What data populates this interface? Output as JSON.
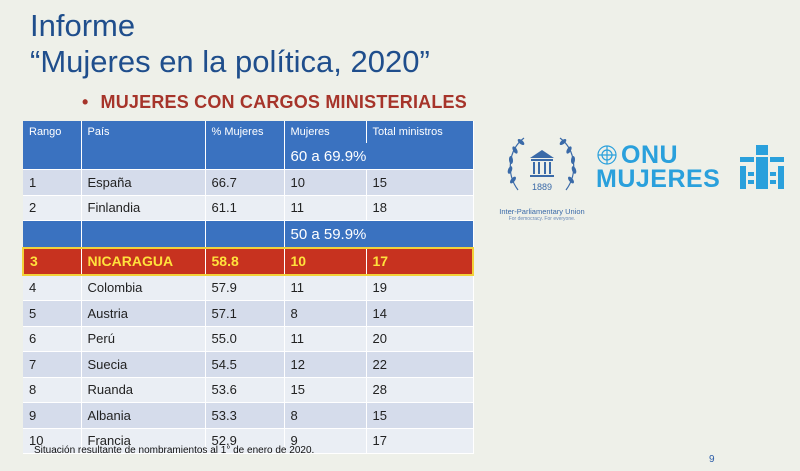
{
  "header": {
    "title_line1": "Informe",
    "title_line2": "“Mujeres en la política, 2020”",
    "subtitle_bullet": "•",
    "subtitle": "MUJERES CON CARGOS MINISTERIALES"
  },
  "table": {
    "headers": [
      "Rango",
      "País",
      "% Mujeres",
      "Mujeres",
      "Total ministros"
    ],
    "group1": "60 a 69.9%",
    "group2": "50 a 59.9%",
    "rows": [
      [
        "1",
        "España",
        "66.7",
        "10",
        "15"
      ],
      [
        "2",
        "Finlandia",
        "61.1",
        "11",
        "18"
      ],
      [
        "3",
        "NICARAGUA",
        "58.8",
        "10",
        "17"
      ],
      [
        "4",
        "Colombia",
        "57.9",
        "11",
        "19"
      ],
      [
        "5",
        "Austria",
        "57.1",
        "8",
        "14"
      ],
      [
        "6",
        "Perú",
        "55.0",
        "11",
        "20"
      ],
      [
        "7",
        "Suecia",
        "54.5",
        "12",
        "22"
      ],
      [
        "8",
        "Ruanda",
        "53.6",
        "15",
        "28"
      ],
      [
        "9",
        "Albania",
        "53.3",
        "8",
        "15"
      ],
      [
        "10",
        "Francia",
        "52.9",
        "9",
        "17"
      ]
    ]
  },
  "footnote": "Situación resultante de nombramientos al 1° de enero de 2020.",
  "page_number": "9",
  "logos": {
    "ipu_year": "1889",
    "ipu_name": "Inter-Parliamentary Union",
    "ipu_tagline": "For democracy. For everyone.",
    "onu_line1": "ONU",
    "onu_line2": "MUJERES"
  },
  "colors": {
    "title": "#1f4e8c",
    "subtitle": "#a6342a",
    "table_header": "#3a72c0",
    "highlight_row": "#c7321f",
    "highlight_text": "#ffe23c",
    "onu_blue": "#2aa0dc"
  }
}
